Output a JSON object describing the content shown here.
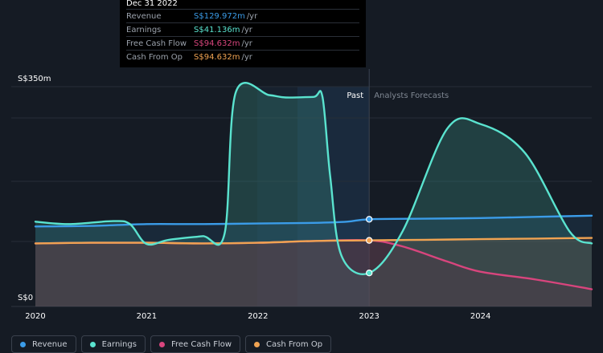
{
  "tooltip": {
    "date": "Dec 31 2022",
    "rows": [
      {
        "label": "Revenue",
        "value": "S$129.972m",
        "unit": "/yr",
        "color": "#3b9ce8"
      },
      {
        "label": "Earnings",
        "value": "S$41.136m",
        "unit": "/yr",
        "color": "#5ae3cf"
      },
      {
        "label": "Free Cash Flow",
        "value": "S$94.632m",
        "unit": "/yr",
        "color": "#d8457d"
      },
      {
        "label": "Cash From Op",
        "value": "S$94.632m",
        "unit": "/yr",
        "color": "#f0a352"
      }
    ]
  },
  "colors": {
    "background": "#151b24",
    "past_region": "#1b2c40",
    "revenue": "#3b9ce8",
    "earnings": "#5ae3cf",
    "free_cash_flow": "#d8457d",
    "cash_from_op": "#f0a352",
    "grid": "#262d38"
  },
  "chart_data": {
    "type": "line",
    "title": "",
    "xlabel": "",
    "ylabel": "",
    "x_ticks": [
      "2020",
      "2021",
      "2022",
      "2023",
      "2024"
    ],
    "y_ticks": [
      "S$0",
      "S$350m"
    ],
    "ylim": [
      0,
      350
    ],
    "xlim": [
      2020,
      2025
    ],
    "grid": true,
    "divider_labels": {
      "past": "Past",
      "forecast": "Analysts Forecasts"
    },
    "divider_x": 2023,
    "highlight_x": 2023,
    "series": [
      {
        "name": "Revenue",
        "key": "revenue",
        "points": [
          [
            2020,
            118
          ],
          [
            2020.5,
            119
          ],
          [
            2021,
            122
          ],
          [
            2021.5,
            122
          ],
          [
            2022,
            123
          ],
          [
            2022.5,
            124
          ],
          [
            2022.8,
            126
          ],
          [
            2023,
            130
          ],
          [
            2023.5,
            131
          ],
          [
            2024,
            132
          ],
          [
            2024.5,
            134
          ],
          [
            2025,
            136
          ]
        ]
      },
      {
        "name": "Earnings",
        "key": "earnings",
        "points": [
          [
            2020,
            126
          ],
          [
            2020.3,
            122
          ],
          [
            2020.7,
            127
          ],
          [
            2020.85,
            122
          ],
          [
            2021,
            89
          ],
          [
            2021.2,
            96
          ],
          [
            2021.5,
            102
          ],
          [
            2021.7,
            106
          ],
          [
            2021.8,
            340
          ],
          [
            2022.1,
            336
          ],
          [
            2022.25,
            332
          ],
          [
            2022.5,
            333
          ],
          [
            2022.58,
            333
          ],
          [
            2022.65,
            200
          ],
          [
            2022.75,
            70
          ],
          [
            2023,
            41
          ],
          [
            2023.3,
            110
          ],
          [
            2023.7,
            280
          ],
          [
            2024,
            288
          ],
          [
            2024.4,
            240
          ],
          [
            2024.8,
            110
          ],
          [
            2025,
            90
          ]
        ]
      },
      {
        "name": "Free Cash Flow",
        "key": "free_cash_flow",
        "points": [
          [
            2020,
            90
          ],
          [
            2020.5,
            91
          ],
          [
            2021,
            91
          ],
          [
            2021.5,
            90
          ],
          [
            2022,
            91
          ],
          [
            2022.5,
            94
          ],
          [
            2023,
            95
          ],
          [
            2023.3,
            85
          ],
          [
            2023.7,
            60
          ],
          [
            2024,
            43
          ],
          [
            2024.5,
            30
          ],
          [
            2025,
            14
          ]
        ]
      },
      {
        "name": "Cash From Op",
        "key": "cash_from_op",
        "points": [
          [
            2020,
            90
          ],
          [
            2020.5,
            91
          ],
          [
            2021,
            91
          ],
          [
            2021.5,
            90
          ],
          [
            2022,
            91
          ],
          [
            2022.5,
            94
          ],
          [
            2023,
            95
          ],
          [
            2023.5,
            96
          ],
          [
            2024,
            97
          ],
          [
            2024.5,
            98
          ],
          [
            2025,
            99
          ]
        ]
      }
    ]
  }
}
